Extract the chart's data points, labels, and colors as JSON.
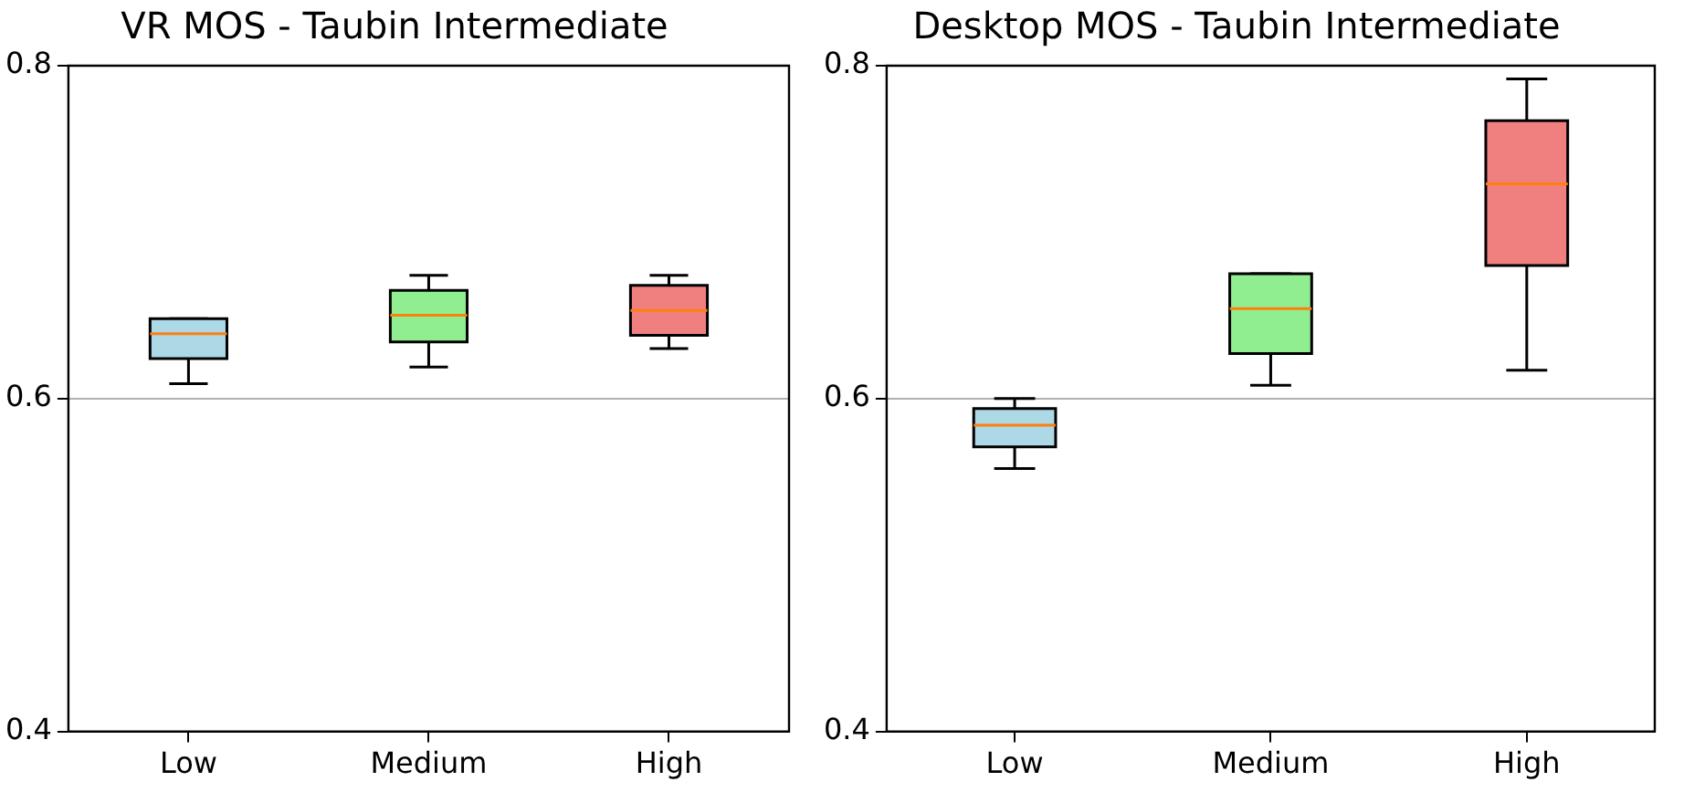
{
  "chart_data": [
    {
      "type": "box",
      "title": "VR MOS - Taubin Intermediate",
      "categories": [
        "Low",
        "Medium",
        "High"
      ],
      "colors": [
        "#add8e6",
        "#90ee90",
        "#f08080"
      ],
      "boxes": [
        {
          "low": 0.609,
          "q1": 0.624,
          "median": 0.639,
          "q3": 0.648,
          "high": 0.648
        },
        {
          "low": 0.619,
          "q1": 0.634,
          "median": 0.65,
          "q3": 0.665,
          "high": 0.674
        },
        {
          "low": 0.63,
          "q1": 0.638,
          "median": 0.653,
          "q3": 0.668,
          "high": 0.674
        }
      ],
      "ylim": [
        0.4,
        0.8
      ],
      "yticks": [
        0.4,
        0.6,
        0.8
      ],
      "grid": "y"
    },
    {
      "type": "box",
      "title": "Desktop MOS - Taubin Intermediate",
      "categories": [
        "Low",
        "Medium",
        "High"
      ],
      "colors": [
        "#add8e6",
        "#90ee90",
        "#f08080"
      ],
      "boxes": [
        {
          "low": 0.558,
          "q1": 0.571,
          "median": 0.584,
          "q3": 0.594,
          "high": 0.6
        },
        {
          "low": 0.608,
          "q1": 0.627,
          "median": 0.654,
          "q3": 0.675,
          "high": 0.675
        },
        {
          "low": 0.617,
          "q1": 0.68,
          "median": 0.729,
          "q3": 0.767,
          "high": 0.792
        }
      ],
      "ylim": [
        0.4,
        0.8
      ],
      "yticks": [
        0.4,
        0.6,
        0.8
      ],
      "grid": "y"
    }
  ]
}
